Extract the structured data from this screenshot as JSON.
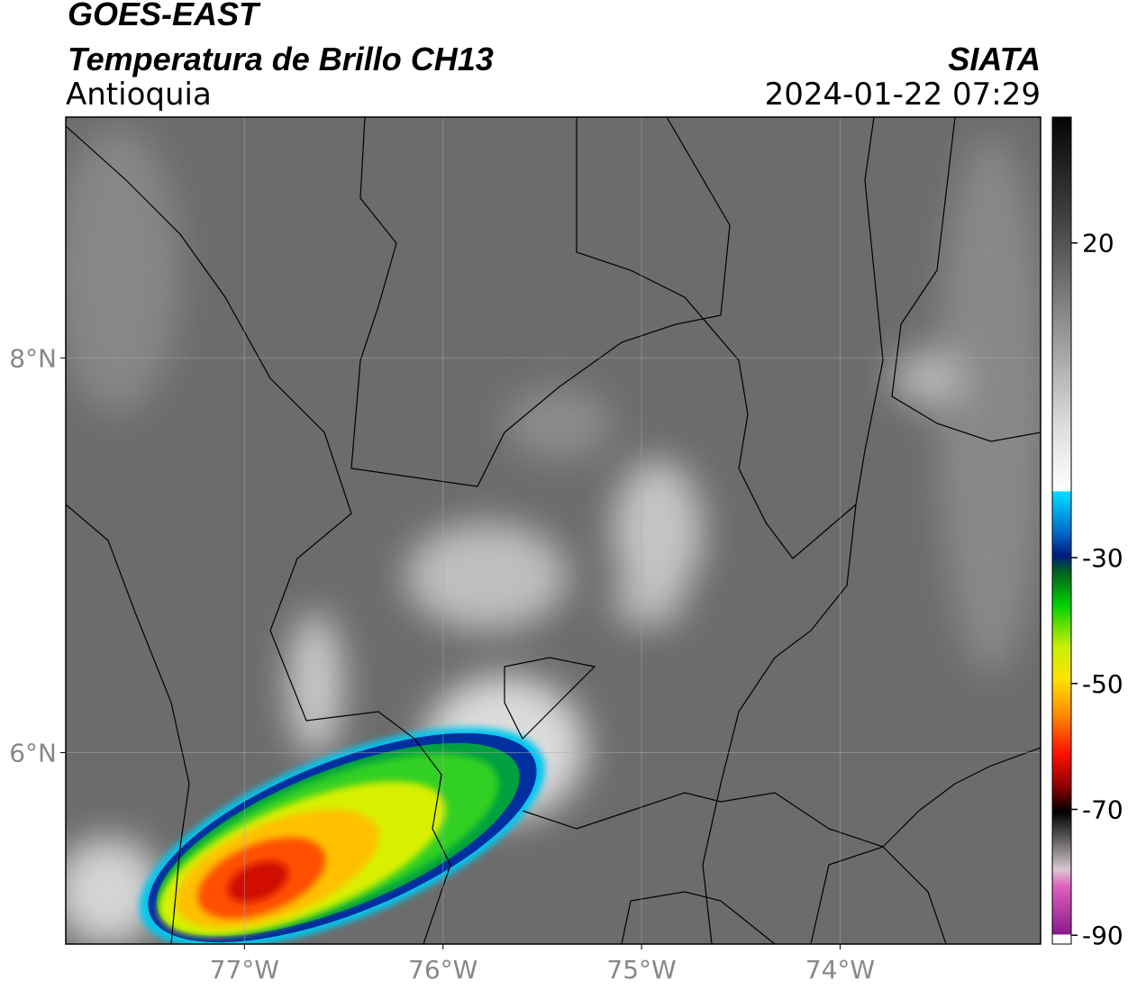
{
  "header": {
    "title": "GOES-EAST",
    "subtitle": "Temperatura de Brillo CH13",
    "region": "Antioquia",
    "source": "SIATA",
    "datetime": "2024-01-22 07:29"
  },
  "map": {
    "xlim": [
      -77.9,
      -72.99
    ],
    "ylim": [
      5.03,
      9.22
    ],
    "xticks": [
      {
        "value": -77,
        "label": "77°W"
      },
      {
        "value": -76,
        "label": "76°W"
      },
      {
        "value": -75,
        "label": "75°W"
      },
      {
        "value": -74,
        "label": "74°W"
      }
    ],
    "yticks": [
      {
        "value": 8,
        "label": "8°N"
      },
      {
        "value": 6,
        "label": "6°N"
      }
    ]
  },
  "colorbar": {
    "lim": [
      -91.4,
      40
    ],
    "ticks": [
      20,
      -30,
      -50,
      -70,
      -90
    ]
  }
}
